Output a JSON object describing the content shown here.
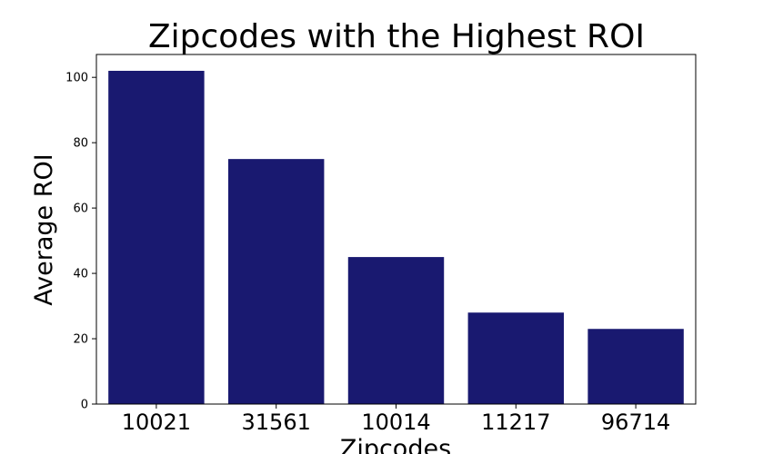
{
  "chart_data": {
    "type": "bar",
    "title": "Zipcodes with the Highest ROI",
    "xlabel": "Zipcodes",
    "ylabel": "Average ROI",
    "categories": [
      "10021",
      "31561",
      "10014",
      "11217",
      "96714"
    ],
    "values": [
      102,
      75,
      45,
      28,
      23
    ],
    "ylim": [
      0,
      107
    ],
    "yticks": [
      0,
      20,
      40,
      60,
      80,
      100
    ],
    "bar_color": "#191970",
    "grid": false,
    "legend": false
  }
}
